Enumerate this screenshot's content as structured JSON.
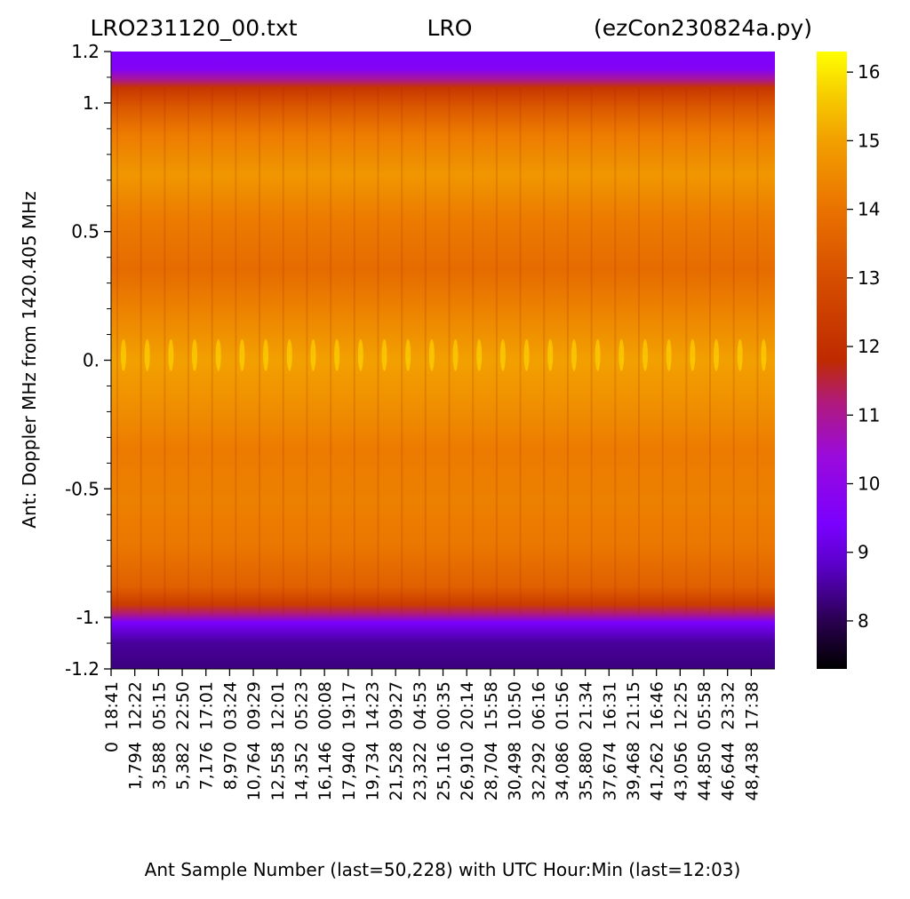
{
  "chart_data": {
    "type": "heatmap",
    "title_left": "LRO231120_00.txt",
    "title_center": "LRO",
    "title_right": "(ezCon230824a.py)",
    "xlabel": "Ant Sample Number (last=50,228) with UTC Hour:Min (last=12:03)",
    "ylabel": "Ant:  Doppler MHz from 1420.405 MHz",
    "ylim": [
      -1.2,
      1.2
    ],
    "y_ticks": [
      {
        "value": 1.2,
        "label": "1.2"
      },
      {
        "value": 1.0,
        "label": "1."
      },
      {
        "value": 0.5,
        "label": "0.5"
      },
      {
        "value": 0.0,
        "label": "0."
      },
      {
        "value": -0.5,
        "label": "-0.5"
      },
      {
        "value": -1.0,
        "label": "-1."
      },
      {
        "value": -1.2,
        "label": "-1.2"
      }
    ],
    "y_minor_step": 0.1,
    "x_last_sample": 50228,
    "x_ticks": [
      {
        "sample": 0,
        "sample_label": "0",
        "time": "18:41"
      },
      {
        "sample": 1794,
        "sample_label": "1,794",
        "time": "12:22"
      },
      {
        "sample": 3588,
        "sample_label": "3,588",
        "time": "05:15"
      },
      {
        "sample": 5382,
        "sample_label": "5,382",
        "time": "22:50"
      },
      {
        "sample": 7176,
        "sample_label": "7,176",
        "time": "17:01"
      },
      {
        "sample": 8970,
        "sample_label": "8,970",
        "time": "03:24"
      },
      {
        "sample": 10764,
        "sample_label": "10,764",
        "time": "09:29"
      },
      {
        "sample": 12558,
        "sample_label": "12,558",
        "time": "12:01"
      },
      {
        "sample": 14352,
        "sample_label": "14,352",
        "time": "05:23"
      },
      {
        "sample": 16146,
        "sample_label": "16,146",
        "time": "00:08"
      },
      {
        "sample": 17940,
        "sample_label": "17,940",
        "time": "19:17"
      },
      {
        "sample": 19734,
        "sample_label": "19,734",
        "time": "14:23"
      },
      {
        "sample": 21528,
        "sample_label": "21,528",
        "time": "09:27"
      },
      {
        "sample": 23322,
        "sample_label": "23,322",
        "time": "04:53"
      },
      {
        "sample": 25116,
        "sample_label": "25,116",
        "time": "00:35"
      },
      {
        "sample": 26910,
        "sample_label": "26,910",
        "time": "20:14"
      },
      {
        "sample": 28704,
        "sample_label": "28,704",
        "time": "15:58"
      },
      {
        "sample": 30498,
        "sample_label": "30,498",
        "time": "10:50"
      },
      {
        "sample": 32292,
        "sample_label": "32,292",
        "time": "06:16"
      },
      {
        "sample": 34086,
        "sample_label": "34,086",
        "time": "01:56"
      },
      {
        "sample": 35880,
        "sample_label": "35,880",
        "time": "21:34"
      },
      {
        "sample": 37674,
        "sample_label": "37,674",
        "time": "16:31"
      },
      {
        "sample": 39468,
        "sample_label": "39,468",
        "time": "21:15"
      },
      {
        "sample": 41262,
        "sample_label": "41,262",
        "time": "16:46"
      },
      {
        "sample": 43056,
        "sample_label": "43,056",
        "time": "12:25"
      },
      {
        "sample": 44850,
        "sample_label": "44,850",
        "time": "05:58"
      },
      {
        "sample": 46644,
        "sample_label": "46,644",
        "time": "23:32"
      },
      {
        "sample": 48438,
        "sample_label": "48,438",
        "time": "17:38"
      }
    ],
    "colorbar": {
      "range": [
        7.3,
        16.3
      ],
      "ticks": [
        {
          "value": 8,
          "label": "8"
        },
        {
          "value": 9,
          "label": "9"
        },
        {
          "value": 10,
          "label": "10"
        },
        {
          "value": 11,
          "label": "11"
        },
        {
          "value": 12,
          "label": "12"
        },
        {
          "value": 13,
          "label": "13"
        },
        {
          "value": 14,
          "label": "14"
        },
        {
          "value": 15,
          "label": "15"
        },
        {
          "value": 16,
          "label": "16"
        }
      ],
      "colormap": "gnuplot",
      "colormap_stops": [
        {
          "v": 7.3,
          "color": "#000000"
        },
        {
          "v": 8.0,
          "color": "#2a0050"
        },
        {
          "v": 8.8,
          "color": "#5a00c8"
        },
        {
          "v": 9.4,
          "color": "#7a00ff"
        },
        {
          "v": 10.4,
          "color": "#9a0adc"
        },
        {
          "v": 11.2,
          "color": "#b01a7a"
        },
        {
          "v": 11.8,
          "color": "#bf2a00"
        },
        {
          "v": 13.0,
          "color": "#d64e00"
        },
        {
          "v": 14.0,
          "color": "#ea7200"
        },
        {
          "v": 15.0,
          "color": "#f2a000"
        },
        {
          "v": 15.7,
          "color": "#f7cf00"
        },
        {
          "v": 16.3,
          "color": "#ffff00"
        }
      ]
    },
    "band_profile": [
      {
        "y": 1.2,
        "value": 9.5
      },
      {
        "y": 1.13,
        "value": 9.7
      },
      {
        "y": 1.09,
        "value": 11.0
      },
      {
        "y": 1.06,
        "value": 12.2
      },
      {
        "y": 0.98,
        "value": 13.3
      },
      {
        "y": 0.88,
        "value": 14.2
      },
      {
        "y": 0.72,
        "value": 14.8
      },
      {
        "y": 0.55,
        "value": 14.2
      },
      {
        "y": 0.35,
        "value": 13.8
      },
      {
        "y": 0.12,
        "value": 14.6
      },
      {
        "y": 0.0,
        "value": 15.0
      },
      {
        "y": -0.15,
        "value": 14.7
      },
      {
        "y": -0.35,
        "value": 14.2
      },
      {
        "y": -0.55,
        "value": 14.3
      },
      {
        "y": -0.72,
        "value": 14.1
      },
      {
        "y": -0.88,
        "value": 13.5
      },
      {
        "y": -0.95,
        "value": 12.4
      },
      {
        "y": -0.985,
        "value": 11.2
      },
      {
        "y": -1.02,
        "value": 9.4
      },
      {
        "y": -1.1,
        "value": 8.5
      },
      {
        "y": -1.2,
        "value": 8.3
      }
    ]
  }
}
